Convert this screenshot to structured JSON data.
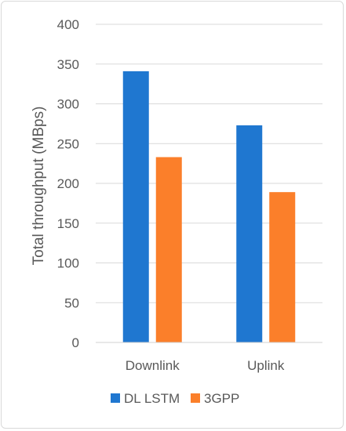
{
  "chart_data": {
    "type": "bar",
    "categories": [
      "Downlink",
      "Uplink"
    ],
    "series": [
      {
        "name": "DL LSTM",
        "color": "#1f77d0",
        "values": [
          341,
          273
        ]
      },
      {
        "name": "3GPP",
        "color": "#fb7f2a",
        "values": [
          233,
          189
        ]
      }
    ],
    "ylabel": "Total throughput (MBps)",
    "xlabel": "",
    "ylim": [
      0,
      400
    ],
    "yticks": [
      0,
      50,
      100,
      150,
      200,
      250,
      300,
      350,
      400
    ],
    "grid": true,
    "legend_position": "bottom"
  }
}
